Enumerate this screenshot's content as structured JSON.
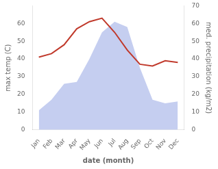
{
  "chart_data": {
    "type": "line",
    "xlabel": "date (month)",
    "ylabel": "max temp (C)",
    "y2label": "med. precipitation (kg/m2)",
    "categories": [
      "Jan",
      "Feb",
      "Mar",
      "Apr",
      "May",
      "Jun",
      "Jul",
      "Aug",
      "Sep",
      "Oct",
      "Nov",
      "Dec"
    ],
    "series": [
      {
        "type": "area",
        "color": "#c5cef0",
        "axis": "y2",
        "values": [
          11,
          17,
          26,
          27,
          40,
          55,
          61,
          58,
          35,
          17,
          15,
          16
        ]
      },
      {
        "type": "line",
        "color": "#c0392b",
        "values": [
          41,
          43,
          48,
          57,
          61,
          63,
          55,
          45,
          37,
          36,
          39,
          38
        ]
      }
    ],
    "ylim": [
      0,
      70
    ],
    "yticks": [
      0,
      10,
      20,
      30,
      40,
      50,
      60
    ],
    "y2lim": [
      0,
      70
    ],
    "y2ticks": [
      0,
      10,
      20,
      30,
      40,
      50,
      60,
      70
    ],
    "grid": false
  }
}
